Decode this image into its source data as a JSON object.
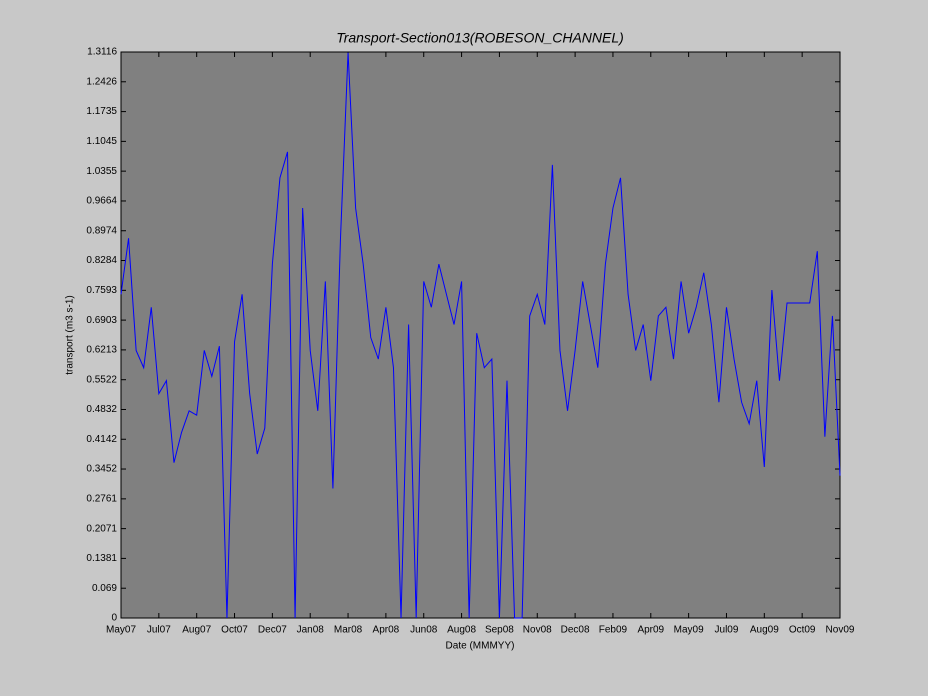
{
  "chart_data": {
    "type": "line",
    "title": "Transport-Section013(ROBESON_CHANNEL)",
    "xlabel": "Date (MMMYY)",
    "ylabel": "transport (m3 s-1)",
    "color": "#0000ff",
    "x": [
      0,
      10,
      20,
      30,
      40,
      50,
      60,
      70,
      80,
      90,
      100,
      110,
      120,
      130,
      140,
      150,
      160,
      170,
      180,
      190,
      200,
      210,
      220,
      230,
      240,
      250,
      260,
      270,
      280,
      290,
      300,
      310,
      320,
      330,
      340,
      350,
      360,
      370,
      380,
      390,
      400,
      410,
      420,
      430,
      440,
      450,
      460,
      470,
      480,
      490,
      500,
      510,
      520,
      530,
      540,
      550,
      560,
      570,
      580,
      590,
      600,
      610,
      620,
      630,
      640,
      650,
      660,
      670,
      680,
      690,
      700,
      710,
      720,
      730,
      740,
      750,
      760,
      770,
      780,
      790,
      800,
      810,
      820,
      830,
      840,
      850,
      860,
      870,
      880,
      890,
      900,
      910,
      920,
      930,
      940,
      950
    ],
    "values": [
      0.75,
      0.88,
      0.62,
      0.58,
      0.72,
      0.52,
      0.55,
      0.36,
      0.43,
      0.48,
      0.47,
      0.62,
      0.56,
      0.63,
      0,
      0.64,
      0.75,
      0.52,
      0.38,
      0.44,
      0.82,
      1.02,
      1.08,
      0,
      0.95,
      0.62,
      0.48,
      0.78,
      0.3,
      0.88,
      1.31,
      0.95,
      0.82,
      0.65,
      0.6,
      0.72,
      0.58,
      0,
      0.68,
      0,
      0.78,
      0.72,
      0.82,
      0.75,
      0.68,
      0.78,
      0,
      0.66,
      0.58,
      0.6,
      0,
      0.55,
      0,
      0,
      0.7,
      0.75,
      0.68,
      1.05,
      0.62,
      0.48,
      0.62,
      0.78,
      0.68,
      0.58,
      0.82,
      0.95,
      1.02,
      0.75,
      0.62,
      0.68,
      0.55,
      0.7,
      0.72,
      0.6,
      0.78,
      0.66,
      0.72,
      0.8,
      0.68,
      0.5,
      0.72,
      0.6,
      0.5,
      0.45,
      0.55,
      0.35,
      0.76,
      0.55,
      0.73,
      0.73,
      0.73,
      0.73,
      0.85,
      0.42,
      0.7,
      0.33
    ],
    "xlim": [
      0,
      950
    ],
    "xticks": [
      {
        "value": 0,
        "label": "May07"
      },
      {
        "value": 50,
        "label": "Jul07"
      },
      {
        "value": 100,
        "label": "Aug07"
      },
      {
        "value": 150,
        "label": "Oct07"
      },
      {
        "value": 200,
        "label": "Dec07"
      },
      {
        "value": 250,
        "label": "Jan08"
      },
      {
        "value": 300,
        "label": "Mar08"
      },
      {
        "value": 350,
        "label": "Apr08"
      },
      {
        "value": 400,
        "label": "Jun08"
      },
      {
        "value": 450,
        "label": "Aug08"
      },
      {
        "value": 500,
        "label": "Sep08"
      },
      {
        "value": 550,
        "label": "Nov08"
      },
      {
        "value": 600,
        "label": "Dec08"
      },
      {
        "value": 650,
        "label": "Feb09"
      },
      {
        "value": 700,
        "label": "Apr09"
      },
      {
        "value": 750,
        "label": "May09"
      },
      {
        "value": 800,
        "label": "Jul09"
      },
      {
        "value": 850,
        "label": "Aug09"
      },
      {
        "value": 900,
        "label": "Oct09"
      },
      {
        "value": 950,
        "label": "Nov09"
      }
    ],
    "ylim": [
      0,
      1.3116
    ],
    "yticks": [
      0,
      0.069,
      0.1381,
      0.2071,
      0.2761,
      0.3452,
      0.4142,
      0.4832,
      0.5522,
      0.6213,
      0.6903,
      0.7593,
      0.8284,
      0.8974,
      0.9664,
      1.0355,
      1.1045,
      1.1735,
      1.2426,
      1.3116
    ]
  }
}
